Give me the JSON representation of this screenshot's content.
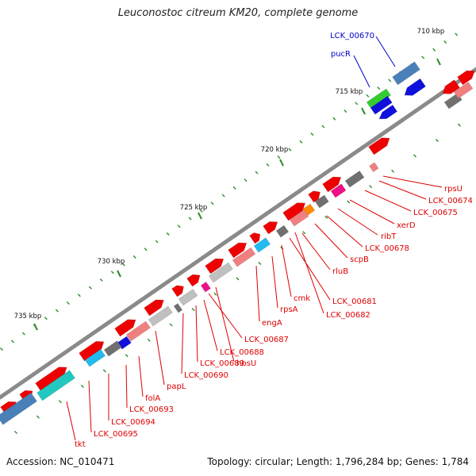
{
  "title": "Leuconostoc citreum KM20, complete genome",
  "accession": "Accession: NC_010471",
  "summary": "Topology: circular; Length: 1,796,284 bp; Genes: 1,784",
  "colors": {
    "backbone": "#8a8a8a",
    "tick_major": "#2e8b2e",
    "tick_minor": "#2e8b2e",
    "label_red": "#dd0000",
    "label_blue": "#0000cc",
    "gene_red": "#ee0000",
    "gene_pink": "#f08080",
    "gene_gray": "#707070",
    "gene_lightgray": "#c0c0c0",
    "gene_cyan": "#22bbee",
    "gene_teal": "#22c8c0",
    "gene_steel": "#4a80b8",
    "gene_blue": "#1010dd",
    "gene_green": "#33cc33",
    "gene_orange": "#ff8800",
    "gene_magenta": "#ee1188"
  },
  "scale_labels": [
    {
      "pos_kbp": 710,
      "label": "710 kbp"
    },
    {
      "pos_kbp": 715,
      "label": "715 kbp"
    },
    {
      "pos_kbp": 720,
      "label": "720 kbp"
    },
    {
      "pos_kbp": 725,
      "label": "725 kbp"
    },
    {
      "pos_kbp": 730,
      "label": "730 kbp"
    },
    {
      "pos_kbp": 735,
      "label": "735 kbp"
    }
  ],
  "gene_labels": [
    {
      "name": "LCK_00670",
      "color": "blue"
    },
    {
      "name": "pucR",
      "color": "blue"
    },
    {
      "name": "rpsU",
      "color": "red"
    },
    {
      "name": "LCK_00674",
      "color": "red"
    },
    {
      "name": "LCK_00675",
      "color": "red"
    },
    {
      "name": "xerD",
      "color": "red"
    },
    {
      "name": "ribT",
      "color": "red"
    },
    {
      "name": "LCK_00678",
      "color": "red"
    },
    {
      "name": "scpB",
      "color": "red"
    },
    {
      "name": "rluB",
      "color": "red"
    },
    {
      "name": "cmk",
      "color": "red"
    },
    {
      "name": "LCK_00681",
      "color": "red"
    },
    {
      "name": "rpsA",
      "color": "red"
    },
    {
      "name": "LCK_00682",
      "color": "red"
    },
    {
      "name": "engA",
      "color": "red"
    },
    {
      "name": "LCK_00687",
      "color": "red"
    },
    {
      "name": "LCK_00688",
      "color": "red"
    },
    {
      "name": "hbsU",
      "color": "red"
    },
    {
      "name": "LCK_00689",
      "color": "red"
    },
    {
      "name": "LCK_00690",
      "color": "red"
    },
    {
      "name": "papL",
      "color": "red"
    },
    {
      "name": "folA",
      "color": "red"
    },
    {
      "name": "LCK_00693",
      "color": "red"
    },
    {
      "name": "LCK_00694",
      "color": "red"
    },
    {
      "name": "LCK_00695",
      "color": "red"
    },
    {
      "name": "tkt",
      "color": "red"
    }
  ]
}
